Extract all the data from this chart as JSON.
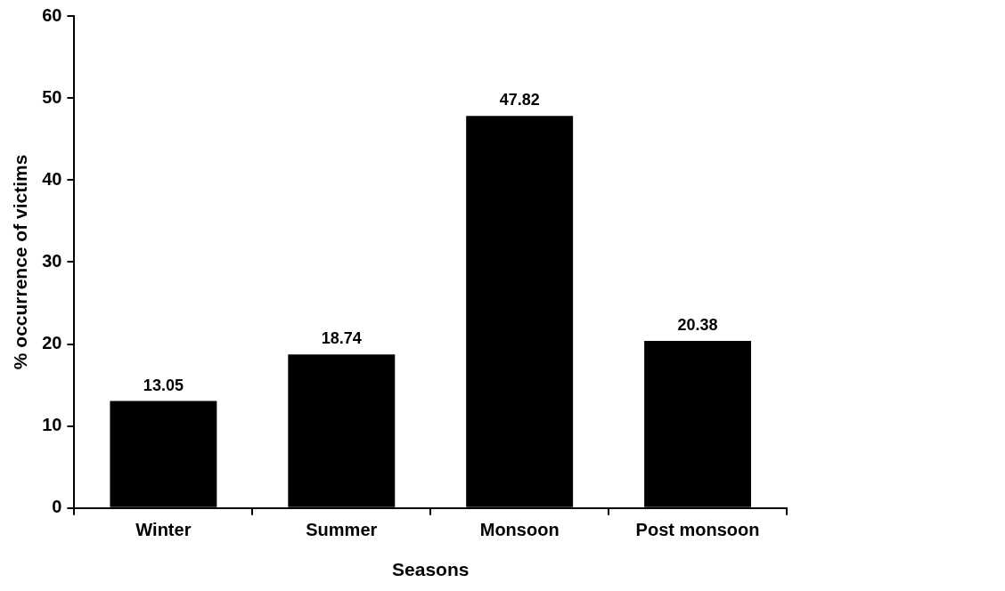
{
  "chart_data": {
    "type": "bar",
    "xlabel": "Seasons",
    "ylabel": "% occurrence of victims",
    "categories": [
      "Winter",
      "Summer",
      "Monsoon",
      "Post monsoon"
    ],
    "values": [
      13.05,
      18.74,
      47.82,
      20.38
    ],
    "color": "#000000",
    "ylim": [
      0,
      60
    ],
    "yticks": [
      0,
      10,
      20,
      30,
      40,
      50,
      60
    ],
    "grid": false,
    "legend": false,
    "data_labels": true
  }
}
